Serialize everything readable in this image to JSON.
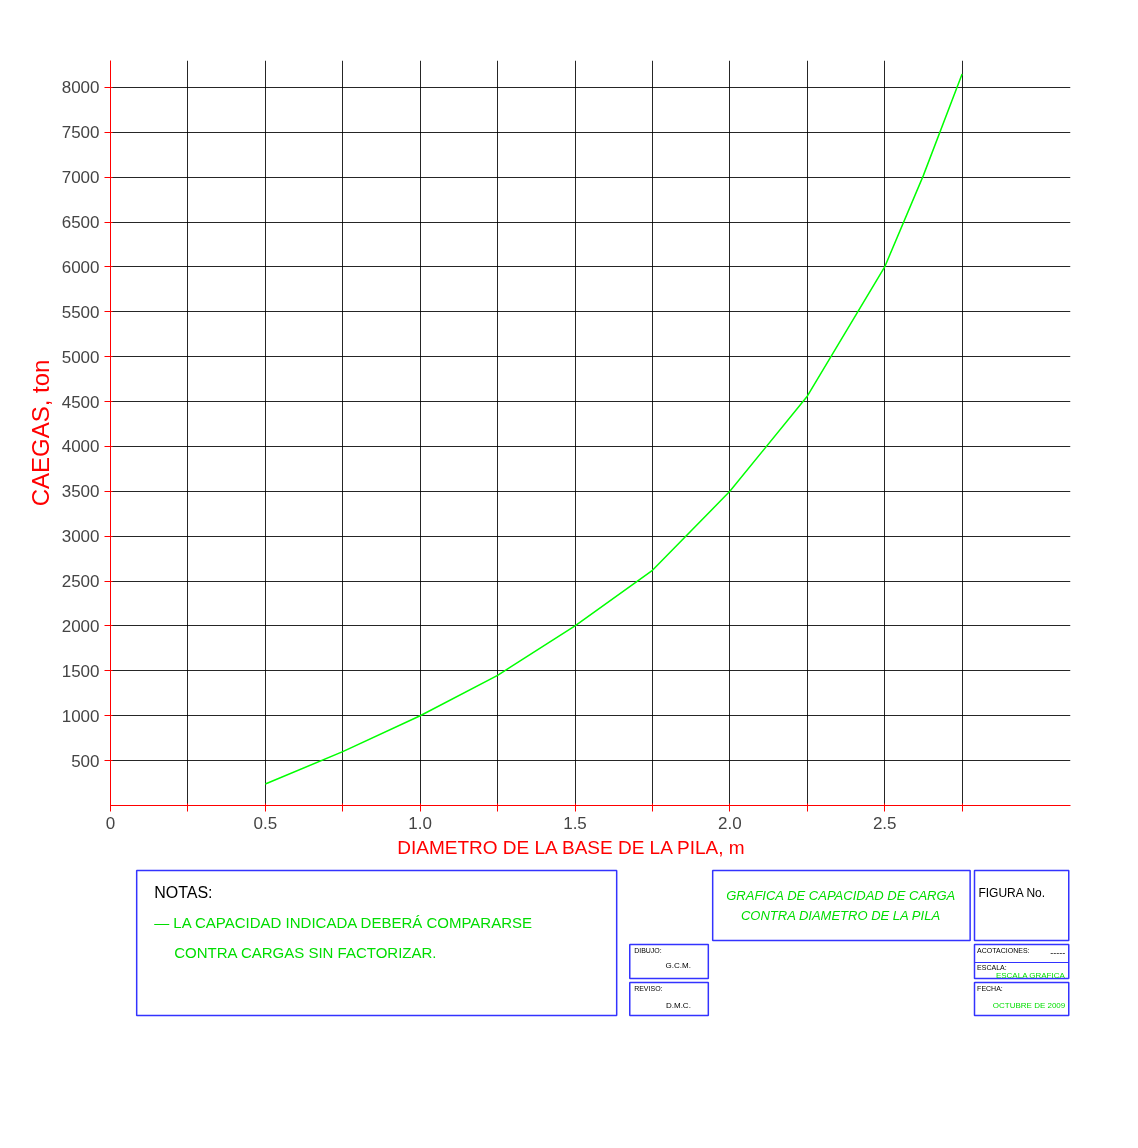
{
  "chart_data": {
    "type": "line",
    "title": "GRAFICA DE CAPACIDAD DE CARGA CONTRA DIAMETRO DE LA PILA",
    "xlabel": "DIAMETRO  DE  LA  BASE  DE  LA  PILA,  m",
    "ylabel": "CAEGAS, ton",
    "x": [
      0.5,
      0.75,
      1.0,
      1.25,
      1.5,
      1.75,
      2.0,
      2.25,
      2.5,
      2.625,
      2.75
    ],
    "series": [
      {
        "color": "#00ff00",
        "values": [
          240,
          600,
          1000,
          1450,
          2000,
          2620,
          3500,
          4560,
          6000,
          7020,
          8150
        ]
      }
    ],
    "xlim": [
      0,
      3.1
    ],
    "ylim": [
      0,
      8300
    ],
    "xticks": [
      0,
      {
        "value": 0.25,
        "label": null
      },
      0.5,
      {
        "value": 0.75,
        "label": null
      },
      {
        "value": 1.0,
        "label": "1.0"
      },
      {
        "value": 1.25,
        "label": null
      },
      1.5,
      {
        "value": 1.75,
        "label": null
      },
      {
        "value": 2.0,
        "label": "2.0"
      },
      {
        "value": 2.25,
        "label": null
      },
      2.5,
      {
        "value": 2.75,
        "label": null
      }
    ],
    "yticks": [
      500,
      1000,
      1500,
      2000,
      2500,
      3000,
      3500,
      4000,
      4500,
      5000,
      5500,
      6000,
      6500,
      7000,
      7500,
      8000
    ],
    "grid": true,
    "marker": "none",
    "line_style": "solid",
    "annotations": [
      "NOTAS:",
      "—  LA  CAPACIDAD  INDICADA  DEBERÁ  COMPARARSE",
      "CONTRA  CARGAS  SIN  FACTORIZAR.",
      "FIGURA  No.",
      "DIBUJO:",
      "G.C.M.",
      "REVISO:",
      "D.M.C.",
      "ACOTACIONES:",
      "-----",
      "ESCALA:",
      "ESCALA GRAFICA",
      "FECHA:",
      "OCTUBRE DE 2009"
    ]
  }
}
